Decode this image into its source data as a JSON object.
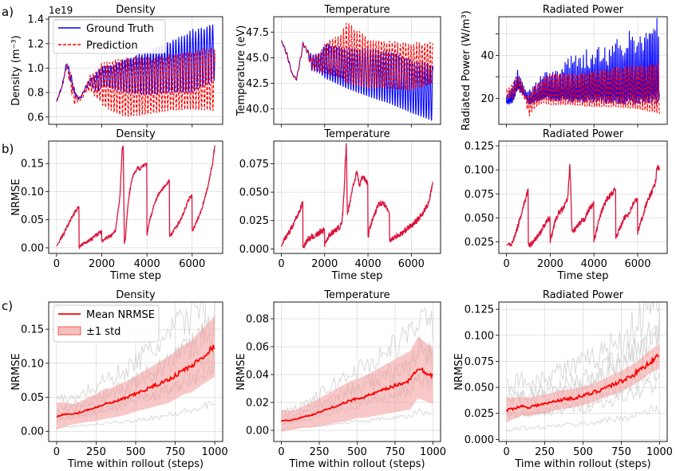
{
  "row_labels": [
    "a)",
    "b)",
    "c)"
  ],
  "colors": {
    "truth": "#0000ff",
    "prediction": "#ff0000",
    "nrmse": "#dc143c",
    "mean": "#ff0000",
    "band": "#f4a3a3",
    "gray": "#c8c8c8"
  },
  "chart_data": [
    {
      "id": "a1",
      "type": "line",
      "title": "Density",
      "ylabel": "Density (m⁻³)",
      "offset_text": "1e19",
      "xlim": [
        -350,
        7350
      ],
      "ylim": [
        0.54,
        1.42
      ],
      "yticks": [
        0.6,
        0.8,
        1.0,
        1.2,
        1.4
      ],
      "ytick_labels": [
        "0.6",
        "0.8",
        "1.0",
        "1.2",
        "1.4"
      ],
      "xticks": [
        0,
        2000,
        4000,
        6000
      ],
      "xtick_labels": [],
      "legend": [
        "Ground Truth",
        "Prediction"
      ],
      "truth_env": {
        "x": [
          0,
          250,
          450,
          650,
          800,
          900,
          1000,
          1100,
          1300,
          1500,
          1700,
          1900,
          2000,
          2300,
          3000,
          4000,
          5000,
          6000,
          7000
        ],
        "lo": [
          0.72,
          0.85,
          1.02,
          0.85,
          0.78,
          0.75,
          0.74,
          0.76,
          0.83,
          0.86,
          0.82,
          0.81,
          0.86,
          0.84,
          0.8,
          0.78,
          0.8,
          0.8,
          0.9
        ],
        "hi": [
          0.73,
          0.87,
          1.06,
          0.95,
          0.82,
          0.78,
          0.76,
          0.78,
          0.86,
          0.92,
          0.95,
          1.0,
          1.02,
          1.02,
          1.08,
          1.15,
          1.22,
          1.32,
          1.38
        ],
        "period": 125
      },
      "pred_env": {
        "x": [
          0,
          250,
          450,
          650,
          800,
          900,
          1000,
          1100,
          1300,
          1500,
          1700,
          1900,
          2000,
          2300,
          3000,
          4000,
          5000,
          6000,
          7000
        ],
        "lo": [
          0.72,
          0.84,
          1.0,
          0.8,
          0.7,
          0.72,
          0.73,
          0.74,
          0.8,
          0.82,
          0.76,
          0.74,
          0.7,
          0.66,
          0.6,
          0.62,
          0.65,
          0.66,
          0.65
        ],
        "hi": [
          0.73,
          0.86,
          1.05,
          0.95,
          0.82,
          0.78,
          0.76,
          0.78,
          0.86,
          0.95,
          0.97,
          1.0,
          1.05,
          1.07,
          1.1,
          1.1,
          1.12,
          1.15,
          1.18
        ],
        "period": 125,
        "phase": 0.4
      }
    },
    {
      "id": "a2",
      "type": "line",
      "title": "Temperature",
      "ylabel": "Temperature (eV)",
      "xlim": [
        -350,
        7350
      ],
      "ylim": [
        38.5,
        49.0
      ],
      "yticks": [
        40.0,
        42.5,
        45.0,
        47.5
      ],
      "ytick_labels": [
        "40.0",
        "42.5",
        "45.0",
        "47.5"
      ],
      "xticks": [
        0,
        2000,
        4000,
        6000
      ],
      "xtick_labels": [],
      "truth_env": {
        "x": [
          0,
          250,
          500,
          700,
          900,
          1000,
          1150,
          1400,
          1800,
          2000,
          3000,
          4000,
          5000,
          6000,
          7000
        ],
        "lo": [
          46.7,
          45.2,
          43.3,
          42.8,
          44.8,
          46.2,
          45.7,
          43.8,
          43.5,
          43.0,
          42.0,
          41.2,
          40.5,
          39.6,
          38.8
        ],
        "hi": [
          46.7,
          45.6,
          43.5,
          43.0,
          45.3,
          46.5,
          46.0,
          45.3,
          45.5,
          46.5,
          46.0,
          46.2,
          45.7,
          45.0,
          44.5
        ],
        "period": 120
      },
      "pred_env": {
        "x": [
          0,
          250,
          500,
          700,
          900,
          1000,
          1150,
          1400,
          1800,
          2000,
          2800,
          3000,
          4000,
          5000,
          6000,
          7000
        ],
        "lo": [
          46.7,
          45.2,
          43.3,
          42.8,
          44.8,
          46.2,
          45.7,
          43.9,
          43.6,
          43.5,
          43.0,
          42.5,
          42.0,
          42.0,
          41.8,
          42.5
        ],
        "hi": [
          46.7,
          45.6,
          43.5,
          43.0,
          45.3,
          46.5,
          46.0,
          45.2,
          45.5,
          46.5,
          47.5,
          48.7,
          47.0,
          46.7,
          46.5,
          46.6
        ],
        "period": 125,
        "phase": 0.3
      }
    },
    {
      "id": "a3",
      "type": "line",
      "title": "Radiated Power",
      "ylabel": "Radiated Power (W/m³)",
      "xlim": [
        -350,
        7350
      ],
      "ylim": [
        8,
        58
      ],
      "yticks": [
        20,
        30,
        40,
        50
      ],
      "ytick_labels": [
        "20",
        "",
        "40",
        ""
      ],
      "xticks": [
        0,
        2000,
        4000,
        6000
      ],
      "xtick_labels": [],
      "truth_env": {
        "x": [
          0,
          300,
          500,
          700,
          900,
          1000,
          1300,
          1700,
          2000,
          3000,
          4000,
          5000,
          6000,
          7000
        ],
        "lo": [
          17,
          18,
          24,
          22,
          20,
          17,
          18,
          19,
          19,
          18,
          18,
          17,
          17,
          17
        ],
        "hi": [
          22,
          28,
          34,
          30,
          24,
          23,
          27,
          32,
          34,
          38,
          42,
          46,
          50,
          56
        ],
        "period": 70,
        "spiky": true
      },
      "pred_env": {
        "x": [
          0,
          300,
          500,
          700,
          900,
          1000,
          1300,
          1700,
          2000,
          3000,
          4000,
          5000,
          6000,
          7000
        ],
        "lo": [
          20,
          20,
          24,
          22,
          18,
          11,
          16,
          18,
          17,
          17,
          16,
          16,
          15,
          13
        ],
        "hi": [
          24,
          27,
          31,
          28,
          22,
          22,
          26,
          30,
          32,
          32,
          33,
          35,
          36,
          37
        ],
        "period": 110,
        "phase": 0.2
      }
    },
    {
      "id": "b1",
      "type": "line",
      "title": "Density",
      "ylabel": "NRMSE",
      "xlabel": "Time step",
      "xlim": [
        -350,
        7350
      ],
      "ylim": [
        -0.01,
        0.19
      ],
      "yticks": [
        0.0,
        0.05,
        0.1,
        0.15
      ],
      "ytick_labels": [
        "0.00",
        "0.05",
        "0.10",
        "0.15"
      ],
      "xticks": [
        0,
        2000,
        4000,
        6000
      ],
      "xtick_labels": [
        "0",
        "2000",
        "4000",
        "6000"
      ],
      "x": [
        0,
        100,
        200,
        300,
        400,
        500,
        600,
        700,
        800,
        900,
        990,
        1000,
        1200,
        1400,
        1600,
        1800,
        1990,
        2000,
        2200,
        2400,
        2500,
        2600,
        2700,
        2800,
        2850,
        2900,
        2950,
        3000,
        3050,
        3100,
        3200,
        3300,
        3400,
        3500,
        3600,
        3700,
        3800,
        3900,
        3990,
        4000,
        4100,
        4200,
        4300,
        4400,
        4500,
        4600,
        4700,
        4800,
        4900,
        4990,
        5000,
        5100,
        5200,
        5300,
        5400,
        5500,
        5600,
        5700,
        5800,
        5900,
        5990,
        6000,
        6100,
        6200,
        6300,
        6400,
        6500,
        6600,
        6700,
        6800,
        6900,
        7000
      ],
      "values": [
        0.003,
        0.01,
        0.018,
        0.024,
        0.032,
        0.04,
        0.048,
        0.056,
        0.063,
        0.069,
        0.074,
        0.001,
        0.008,
        0.012,
        0.018,
        0.024,
        0.029,
        0.012,
        0.018,
        0.022,
        0.026,
        0.03,
        0.06,
        0.09,
        0.13,
        0.175,
        0.18,
        0.01,
        0.02,
        0.05,
        0.09,
        0.115,
        0.13,
        0.135,
        0.143,
        0.14,
        0.146,
        0.148,
        0.15,
        0.02,
        0.045,
        0.06,
        0.075,
        0.085,
        0.095,
        0.1,
        0.105,
        0.11,
        0.115,
        0.12,
        0.02,
        0.025,
        0.032,
        0.038,
        0.044,
        0.05,
        0.06,
        0.07,
        0.082,
        0.09,
        0.095,
        0.03,
        0.038,
        0.046,
        0.056,
        0.066,
        0.08,
        0.095,
        0.11,
        0.13,
        0.15,
        0.182
      ]
    },
    {
      "id": "b2",
      "type": "line",
      "title": "Temperature",
      "ylabel": "",
      "xlabel": "Time step",
      "xlim": [
        -350,
        7350
      ],
      "ylim": [
        -0.004,
        0.095
      ],
      "yticks": [
        0.0,
        0.025,
        0.05,
        0.075
      ],
      "ytick_labels": [
        "0.000",
        "0.025",
        "0.050",
        "0.075"
      ],
      "xticks": [
        0,
        2000,
        4000,
        6000
      ],
      "xtick_labels": [
        "0",
        "2000",
        "4000",
        "6000"
      ],
      "x": [
        0,
        100,
        200,
        300,
        400,
        500,
        600,
        700,
        800,
        900,
        990,
        1000,
        1200,
        1400,
        1600,
        1800,
        1990,
        2000,
        2200,
        2400,
        2600,
        2800,
        2900,
        2950,
        3000,
        3050,
        3100,
        3200,
        3300,
        3400,
        3500,
        3600,
        3700,
        3800,
        3900,
        3990,
        4000,
        4100,
        4200,
        4300,
        4400,
        4500,
        4600,
        4700,
        4800,
        4900,
        4990,
        5000,
        5200,
        5400,
        5600,
        5800,
        5990,
        6000,
        6200,
        6400,
        6600,
        6800,
        6900,
        7000
      ],
      "values": [
        0.002,
        0.007,
        0.01,
        0.013,
        0.016,
        0.02,
        0.024,
        0.028,
        0.032,
        0.036,
        0.042,
        0.001,
        0.008,
        0.01,
        0.012,
        0.015,
        0.017,
        0.004,
        0.012,
        0.015,
        0.018,
        0.022,
        0.05,
        0.075,
        0.092,
        0.03,
        0.035,
        0.045,
        0.055,
        0.062,
        0.068,
        0.055,
        0.062,
        0.064,
        0.06,
        0.058,
        0.01,
        0.02,
        0.025,
        0.03,
        0.035,
        0.04,
        0.04,
        0.041,
        0.038,
        0.035,
        0.03,
        0.008,
        0.01,
        0.012,
        0.014,
        0.018,
        0.02,
        0.02,
        0.024,
        0.028,
        0.034,
        0.04,
        0.05,
        0.058
      ]
    },
    {
      "id": "b3",
      "type": "line",
      "title": "Radiated Power",
      "ylabel": "",
      "xlabel": "Time step",
      "xlim": [
        -350,
        7350
      ],
      "ylim": [
        0.013,
        0.13
      ],
      "yticks": [
        0.025,
        0.05,
        0.075,
        0.1,
        0.125
      ],
      "ytick_labels": [
        "0.025",
        "0.050",
        "0.075",
        "0.100",
        "0.125"
      ],
      "xticks": [
        0,
        2000,
        4000,
        6000
      ],
      "xtick_labels": [
        "0",
        "2000",
        "4000",
        "6000"
      ],
      "x": [
        0,
        100,
        200,
        300,
        400,
        500,
        600,
        700,
        800,
        900,
        990,
        1000,
        1200,
        1400,
        1600,
        1800,
        1990,
        2000,
        2200,
        2400,
        2600,
        2800,
        2900,
        3000,
        3200,
        3400,
        3600,
        3800,
        3990,
        4000,
        4200,
        4400,
        4600,
        4800,
        4990,
        5000,
        5200,
        5400,
        5600,
        5800,
        5990,
        6000,
        6200,
        6400,
        6600,
        6800,
        6900,
        7000
      ],
      "values": [
        0.022,
        0.023,
        0.022,
        0.025,
        0.032,
        0.04,
        0.048,
        0.056,
        0.064,
        0.072,
        0.08,
        0.02,
        0.025,
        0.03,
        0.037,
        0.045,
        0.05,
        0.025,
        0.045,
        0.055,
        0.06,
        0.07,
        0.105,
        0.035,
        0.04,
        0.045,
        0.05,
        0.06,
        0.065,
        0.025,
        0.045,
        0.06,
        0.07,
        0.075,
        0.08,
        0.03,
        0.04,
        0.05,
        0.055,
        0.065,
        0.07,
        0.035,
        0.05,
        0.065,
        0.075,
        0.085,
        0.105,
        0.1
      ]
    },
    {
      "id": "c1",
      "type": "line",
      "title": "Density",
      "ylabel": "NRMSE",
      "xlabel": "Time within rollout (steps)",
      "xlim": [
        -50,
        1050
      ],
      "ylim": [
        -0.015,
        0.19
      ],
      "yticks": [
        0.0,
        0.05,
        0.1,
        0.15
      ],
      "ytick_labels": [
        "0.00",
        "0.05",
        "0.10",
        "0.15"
      ],
      "xticks": [
        0,
        250,
        500,
        750,
        1000
      ],
      "xtick_labels": [
        "0",
        "250",
        "500",
        "750",
        "1000"
      ],
      "legend": [
        "Mean NRMSE",
        "±1 std"
      ],
      "x": [
        0,
        50,
        100,
        150,
        200,
        250,
        300,
        350,
        400,
        450,
        500,
        550,
        600,
        650,
        700,
        750,
        800,
        850,
        900,
        950,
        1000
      ],
      "mean": [
        0.022,
        0.025,
        0.025,
        0.028,
        0.032,
        0.035,
        0.04,
        0.042,
        0.046,
        0.05,
        0.055,
        0.06,
        0.065,
        0.07,
        0.075,
        0.082,
        0.09,
        0.095,
        0.105,
        0.115,
        0.125
      ],
      "std": [
        0.02,
        0.018,
        0.015,
        0.016,
        0.018,
        0.02,
        0.022,
        0.022,
        0.024,
        0.025,
        0.026,
        0.028,
        0.03,
        0.032,
        0.034,
        0.035,
        0.036,
        0.038,
        0.04,
        0.042,
        0.045
      ]
    },
    {
      "id": "c2",
      "type": "line",
      "title": "Temperature",
      "ylabel": "NRMSE",
      "xlabel": "Time within rollout (steps)",
      "xlim": [
        -50,
        1050
      ],
      "ylim": [
        -0.008,
        0.092
      ],
      "yticks": [
        0.0,
        0.02,
        0.04,
        0.06,
        0.08
      ],
      "ytick_labels": [
        "0.00",
        "0.02",
        "0.04",
        "0.06",
        "0.08"
      ],
      "xticks": [
        0,
        250,
        500,
        750,
        1000
      ],
      "xtick_labels": [
        "0",
        "250",
        "500",
        "750",
        "1000"
      ],
      "x": [
        0,
        50,
        100,
        150,
        200,
        250,
        300,
        350,
        400,
        450,
        500,
        550,
        600,
        650,
        700,
        750,
        800,
        850,
        900,
        950,
        1000
      ],
      "mean": [
        0.007,
        0.007,
        0.008,
        0.01,
        0.011,
        0.013,
        0.015,
        0.017,
        0.019,
        0.021,
        0.023,
        0.024,
        0.026,
        0.028,
        0.03,
        0.032,
        0.034,
        0.036,
        0.045,
        0.042,
        0.039
      ],
      "std": [
        0.008,
        0.007,
        0.007,
        0.008,
        0.009,
        0.01,
        0.011,
        0.012,
        0.013,
        0.014,
        0.014,
        0.015,
        0.016,
        0.017,
        0.018,
        0.019,
        0.02,
        0.021,
        0.022,
        0.021,
        0.02
      ]
    },
    {
      "id": "c3",
      "type": "line",
      "title": "Radiated Power",
      "ylabel": "NRMSE",
      "xlabel": "Time within rollout (steps)",
      "xlim": [
        -50,
        1050
      ],
      "ylim": [
        -0.002,
        0.132
      ],
      "yticks": [
        0.0,
        0.025,
        0.05,
        0.075,
        0.1,
        0.125
      ],
      "ytick_labels": [
        "0.000",
        "0.025",
        "0.050",
        "0.075",
        "0.100",
        "0.125"
      ],
      "xticks": [
        0,
        250,
        500,
        750,
        1000
      ],
      "xtick_labels": [
        "0",
        "250",
        "500",
        "750",
        "1000"
      ],
      "x": [
        0,
        50,
        100,
        150,
        200,
        250,
        300,
        350,
        400,
        450,
        500,
        550,
        600,
        650,
        700,
        750,
        800,
        850,
        900,
        950,
        1000
      ],
      "mean": [
        0.028,
        0.03,
        0.032,
        0.031,
        0.033,
        0.034,
        0.036,
        0.038,
        0.039,
        0.04,
        0.042,
        0.044,
        0.047,
        0.05,
        0.053,
        0.056,
        0.06,
        0.064,
        0.07,
        0.076,
        0.08
      ],
      "std": [
        0.012,
        0.01,
        0.009,
        0.009,
        0.009,
        0.009,
        0.009,
        0.009,
        0.009,
        0.009,
        0.009,
        0.009,
        0.009,
        0.009,
        0.01,
        0.01,
        0.01,
        0.01,
        0.011,
        0.011,
        0.012
      ]
    }
  ]
}
